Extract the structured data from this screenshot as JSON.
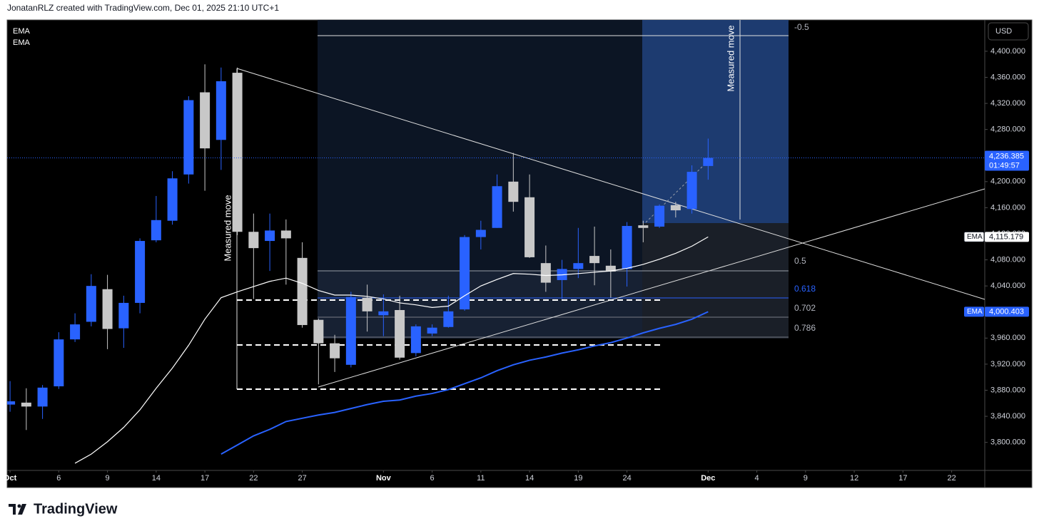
{
  "header": "JonatanRLZ created with TradingView.com, Dec 01, 2025 21:10 UTC+1",
  "footer_logo": "TradingView",
  "chart_data": {
    "type": "candlestick",
    "currency": "USD",
    "up_color": "#2962ff",
    "down_color": "#c8c8c8",
    "grid": false,
    "x": [
      0,
      1,
      2,
      3,
      4,
      5,
      6,
      7,
      8,
      9,
      10,
      11,
      12,
      13,
      14,
      15,
      16,
      17,
      18,
      19,
      20,
      21,
      22,
      23,
      24,
      25,
      26,
      27,
      28,
      29,
      30,
      31,
      32,
      33,
      34,
      35,
      36,
      37,
      38,
      39,
      40,
      41,
      42,
      43
    ],
    "open": [
      3858,
      3861,
      3855,
      3886,
      3958,
      3985,
      4035,
      3975,
      4014,
      4110,
      4140,
      4211,
      4337,
      4264,
      4367,
      4123,
      4109,
      4125,
      4083,
      3988,
      3952,
      3919,
      4022,
      3995,
      4003,
      3937,
      3967,
      3977,
      4004,
      4115,
      4129,
      4200,
      4176,
      4075,
      4049,
      4066,
      4086,
      4071,
      4066,
      4133,
      4131,
      4164,
      4158,
      4224
    ],
    "high": [
      3894,
      3883,
      3888,
      3969,
      3998,
      4058,
      4057,
      4025,
      4113,
      4178,
      4216,
      4331,
      4380,
      4375,
      4375,
      4151,
      4151,
      4142,
      4107,
      3990,
      3965,
      4031,
      4042,
      4027,
      4025,
      3981,
      3981,
      4025,
      4118,
      4140,
      4211,
      4244,
      4211,
      4102,
      4080,
      4129,
      4131,
      4096,
      4138,
      4140,
      4165,
      4169,
      4225,
      4266
    ],
    "low": [
      3847,
      3819,
      3836,
      3882,
      3954,
      3978,
      3943,
      3945,
      3998,
      4107,
      4134,
      4197,
      4186,
      4218,
      4118,
      4020,
      4063,
      4042,
      3976,
      3889,
      3908,
      3915,
      3970,
      3963,
      3927,
      3932,
      3963,
      3976,
      4002,
      4096,
      4129,
      4154,
      4083,
      4031,
      4020,
      4052,
      4041,
      4022,
      4039,
      4107,
      4129,
      4145,
      4151,
      4203
    ],
    "close": [
      3863,
      3855,
      3884,
      3958,
      3981,
      4040,
      3974,
      4014,
      4109,
      4141,
      4205,
      4325,
      4251,
      4354,
      4123,
      4098,
      4125,
      4113,
      3980,
      3952,
      3929,
      4023,
      4001,
      4001,
      3930,
      3978,
      3976,
      4001,
      4115,
      4126,
      4193,
      4169,
      4084,
      4045,
      4066,
      4075,
      4075,
      4062,
      4132,
      4129,
      4163,
      4156,
      4215,
      4236.385
    ],
    "last_price_label": "4,236.385",
    "countdown": "01:49:57",
    "series": [
      {
        "name": "EMA",
        "color": "#ffffff",
        "last_label": "4,115.179",
        "values": [
          null,
          null,
          null,
          null,
          3768,
          3782,
          3801,
          3823,
          3850,
          3883,
          3914,
          3949,
          3989,
          4022,
          4031,
          4039,
          4047,
          4052,
          4044,
          4033,
          4026,
          4026,
          4024,
          4020,
          4014,
          4011,
          4007,
          4009,
          4025,
          4040,
          4050,
          4059,
          4058,
          4056,
          4057,
          4059,
          4061,
          4063,
          4067,
          4073,
          4081,
          4090,
          4101,
          4115.179
        ]
      },
      {
        "name": "EMA",
        "color": "#2962ff",
        "last_label": "4,000.403",
        "values": [
          null,
          null,
          null,
          null,
          null,
          null,
          null,
          null,
          null,
          null,
          null,
          null,
          null,
          3782,
          3796,
          3810,
          3820,
          3832,
          3837,
          3842,
          3846,
          3852,
          3858,
          3863,
          3865,
          3871,
          3875,
          3881,
          3890,
          3899,
          3910,
          3919,
          3926,
          3931,
          3937,
          3942,
          3948,
          3953,
          3960,
          3968,
          3975,
          3981,
          3989,
          4000.403
        ]
      }
    ],
    "xlim": [
      -0.18,
      60.04
    ],
    "xticks": [
      {
        "value": 0,
        "label": "Oct"
      },
      {
        "value": 3,
        "label": "6"
      },
      {
        "value": 6,
        "label": "9"
      },
      {
        "value": 9,
        "label": "14"
      },
      {
        "value": 12,
        "label": "17"
      },
      {
        "value": 15,
        "label": "22"
      },
      {
        "value": 18,
        "label": "27"
      },
      {
        "value": 23,
        "label": "Nov"
      },
      {
        "value": 26,
        "label": "6"
      },
      {
        "value": 29,
        "label": "11"
      },
      {
        "value": 32,
        "label": "14"
      },
      {
        "value": 35,
        "label": "19"
      },
      {
        "value": 38,
        "label": "24"
      },
      {
        "value": 43,
        "label": "Dec"
      },
      {
        "value": 46,
        "label": "4"
      },
      {
        "value": 49,
        "label": "9"
      },
      {
        "value": 52,
        "label": "12"
      },
      {
        "value": 55,
        "label": "17"
      },
      {
        "value": 58,
        "label": "22"
      }
    ],
    "ylim": [
      3757,
      4448
    ],
    "yticks": [
      {
        "value": 3800,
        "label": "3,800.000"
      },
      {
        "value": 3840,
        "label": "3,840.000"
      },
      {
        "value": 3880,
        "label": "3,880.000"
      },
      {
        "value": 3920,
        "label": "3,920.000"
      },
      {
        "value": 3960,
        "label": "3,960.000"
      },
      {
        "value": 4000,
        "label": "4,000.000"
      },
      {
        "value": 4040,
        "label": "4,040.000"
      },
      {
        "value": 4080,
        "label": "4,080.000"
      },
      {
        "value": 4120,
        "label": "4,120.000"
      },
      {
        "value": 4160,
        "label": "4,160.000"
      },
      {
        "value": 4200,
        "label": "4,200.000"
      },
      {
        "value": 4240,
        "label": "4,240.000"
      },
      {
        "value": 4280,
        "label": "4,280.000"
      },
      {
        "value": 4320,
        "label": "4,320.000"
      },
      {
        "value": 4360,
        "label": "4,360.000"
      },
      {
        "value": 4400,
        "label": "4,400.000"
      }
    ],
    "annotations": {
      "measured_move": [
        "Measured move",
        "Measured move"
      ],
      "fib_levels": [
        -0.5,
        0.5,
        0.618,
        0.702,
        0.786
      ]
    }
  }
}
